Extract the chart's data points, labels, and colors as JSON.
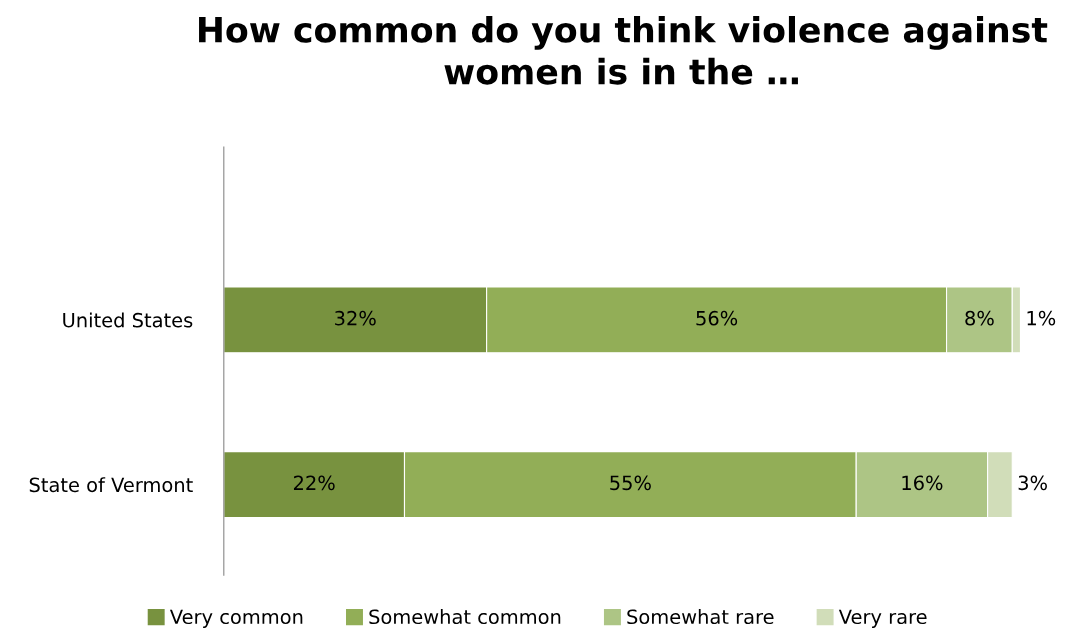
{
  "chart_data": {
    "type": "bar",
    "orientation": "horizontal",
    "stacked": true,
    "title": "How common do you think violence against women is in the …",
    "categories": [
      "United States",
      "State of Vermont"
    ],
    "series": [
      {
        "name": "Very common",
        "color": "#78923f",
        "values": [
          32,
          22
        ],
        "value_labels": [
          "32%",
          "22%"
        ]
      },
      {
        "name": "Somewhat common",
        "color": "#92ae57",
        "values": [
          56,
          55
        ],
        "value_labels": [
          "56%",
          "55%"
        ]
      },
      {
        "name": "Somewhat rare",
        "color": "#adc585",
        "values": [
          8,
          16
        ],
        "value_labels": [
          "8%",
          "16%"
        ]
      },
      {
        "name": "Very rare",
        "color": "#d1ddb9",
        "values": [
          1,
          3
        ],
        "value_labels": [
          "1%",
          "3%"
        ]
      }
    ],
    "tick_labels": "y",
    "grid": false,
    "legend": "bottom"
  }
}
